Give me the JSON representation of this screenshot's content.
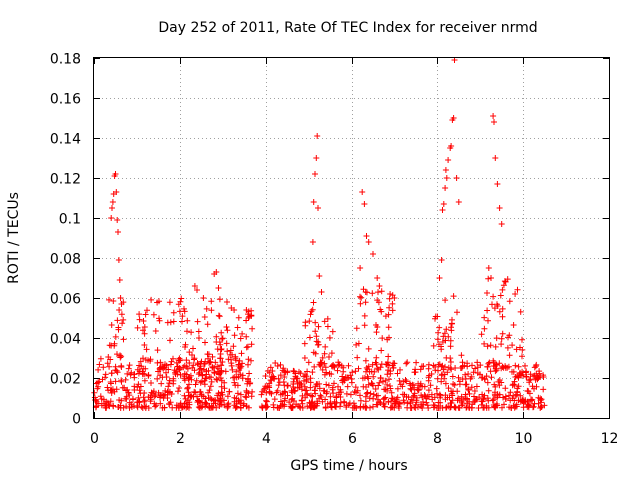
{
  "chart_data": {
    "type": "scatter",
    "title": "Day 252 of 2011, Rate Of TEC Index for receiver nrmd",
    "xlabel": "GPS time / hours",
    "ylabel": "ROTI / TECUs",
    "xlim": [
      0,
      12
    ],
    "ylim": [
      0,
      0.18
    ],
    "grid": true,
    "marker": "+",
    "color": "#ff0000",
    "x_ticks": [
      "0",
      "2",
      "4",
      "6",
      "8",
      "10",
      "12"
    ],
    "y_ticks": [
      "0",
      "0.02",
      "0.04",
      "0.06",
      "0.08",
      "0.1",
      "0.12",
      "0.14",
      "0.16",
      "0.18"
    ],
    "series": [
      {
        "name": "ROTI",
        "x": [
          0.4,
          0.42,
          0.44,
          0.46,
          0.48,
          0.5,
          0.52,
          0.54,
          0.56,
          0.58,
          0.6,
          0.62,
          0.64,
          2.8,
          2.85,
          2.9,
          2.35,
          2.4,
          2.55,
          3.1,
          3.2,
          3.55,
          3.6,
          5.1,
          5.12,
          5.15,
          5.18,
          5.2,
          5.22,
          5.25,
          5.3,
          6.2,
          6.25,
          6.3,
          6.35,
          6.4,
          6.5,
          6.6,
          6.65,
          6.9,
          7.0,
          8.05,
          8.1,
          8.12,
          8.15,
          8.18,
          8.2,
          8.22,
          8.25,
          8.3,
          8.32,
          8.35,
          8.38,
          8.4,
          8.45,
          8.5,
          9.2,
          9.25,
          9.3,
          9.32,
          9.35,
          9.4,
          9.45,
          9.5
        ],
        "y": [
          0.1,
          0.105,
          0.108,
          0.112,
          0.121,
          0.122,
          0.113,
          0.099,
          0.093,
          0.079,
          0.069,
          0.06,
          0.057,
          0.072,
          0.073,
          0.065,
          0.066,
          0.064,
          0.06,
          0.058,
          0.055,
          0.054,
          0.05,
          0.088,
          0.108,
          0.122,
          0.13,
          0.141,
          0.105,
          0.071,
          0.063,
          0.075,
          0.113,
          0.107,
          0.091,
          0.088,
          0.082,
          0.07,
          0.066,
          0.062,
          0.06,
          0.07,
          0.079,
          0.104,
          0.107,
          0.115,
          0.124,
          0.12,
          0.129,
          0.135,
          0.136,
          0.149,
          0.15,
          0.179,
          0.12,
          0.108,
          0.075,
          0.07,
          0.151,
          0.148,
          0.13,
          0.117,
          0.105,
          0.097
        ]
      }
    ],
    "background_bands": [
      {
        "x_start": 0.0,
        "x_end": 3.7,
        "y_low": 0.005,
        "y_high": 0.03
      },
      {
        "x_start": 3.9,
        "x_end": 10.5,
        "y_low": 0.005,
        "y_high": 0.028
      }
    ],
    "clusters": [
      {
        "x_start": 0.3,
        "x_end": 0.7,
        "y_low": 0.03,
        "y_high": 0.06
      },
      {
        "x_start": 1.0,
        "x_end": 3.0,
        "y_low": 0.02,
        "y_high": 0.06
      },
      {
        "x_start": 2.9,
        "x_end": 3.7,
        "y_low": 0.025,
        "y_high": 0.055
      },
      {
        "x_start": 4.9,
        "x_end": 5.6,
        "y_low": 0.025,
        "y_high": 0.06
      },
      {
        "x_start": 6.1,
        "x_end": 7.0,
        "y_low": 0.025,
        "y_high": 0.065
      },
      {
        "x_start": 7.9,
        "x_end": 8.6,
        "y_low": 0.025,
        "y_high": 0.065
      },
      {
        "x_start": 9.0,
        "x_end": 10.0,
        "y_low": 0.025,
        "y_high": 0.07
      }
    ]
  }
}
